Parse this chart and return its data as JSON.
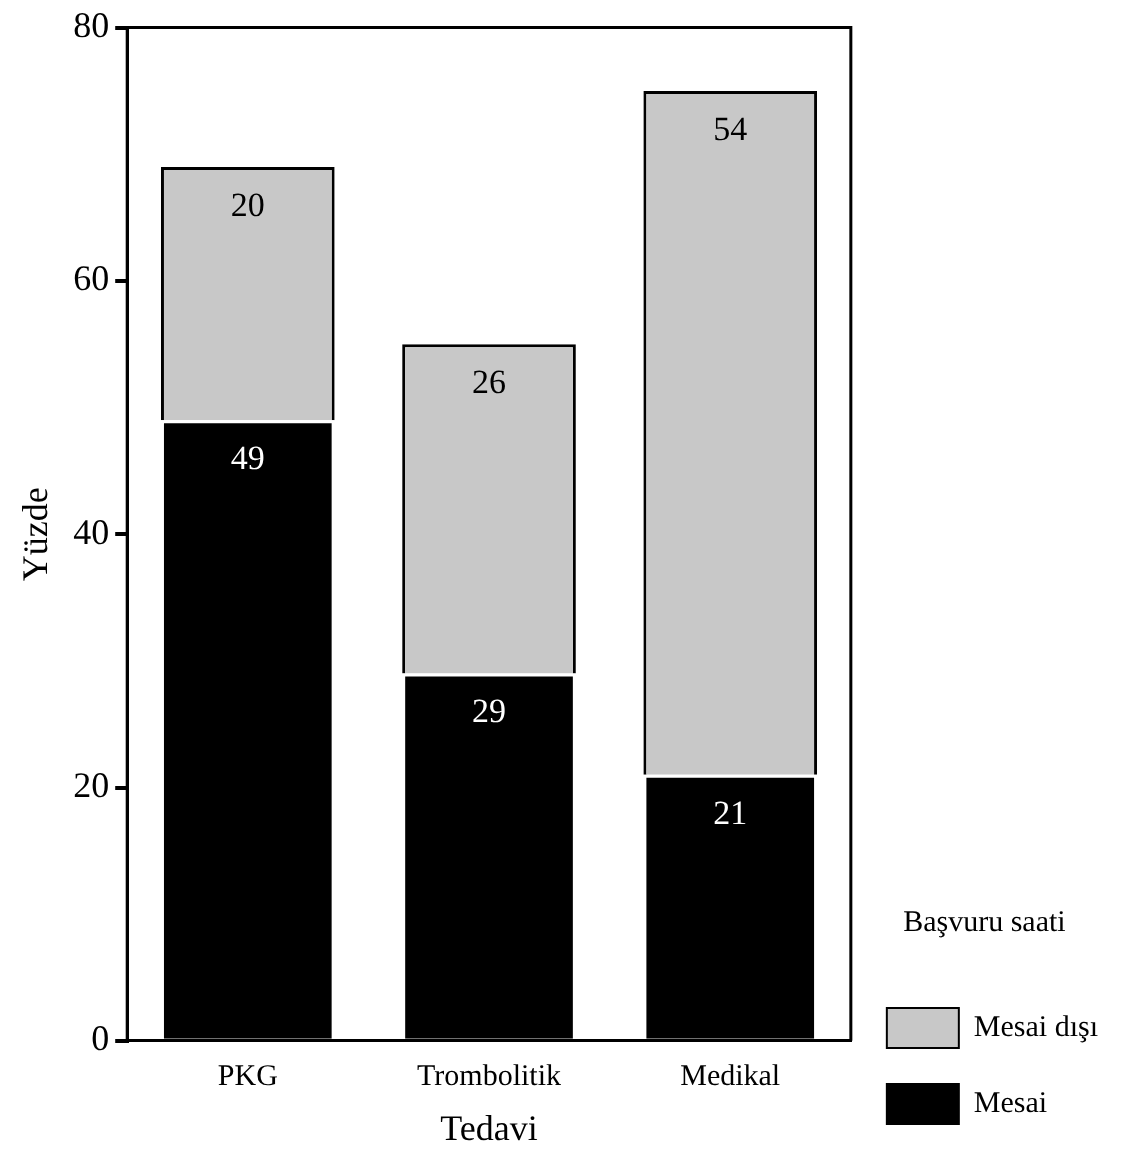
{
  "chart_data": {
    "type": "bar",
    "xlabel": "Tedavi",
    "ylabel": "Yüzde",
    "legend_title": "Başvuru saati",
    "categories": [
      "PKG",
      "Trombolitik",
      "Medikal"
    ],
    "stacked": true,
    "series": [
      {
        "name": "Mesai",
        "color": "#000000",
        "values": [
          49,
          29,
          21
        ]
      },
      {
        "name": "Mesai dışı",
        "color": "#c8c8c8",
        "values": [
          20,
          26,
          54
        ]
      }
    ],
    "ylim": [
      0,
      80
    ],
    "yticks": [
      0,
      20,
      40,
      60,
      80
    ],
    "grid": false,
    "legend": "bottom right",
    "data_labels": true
  }
}
